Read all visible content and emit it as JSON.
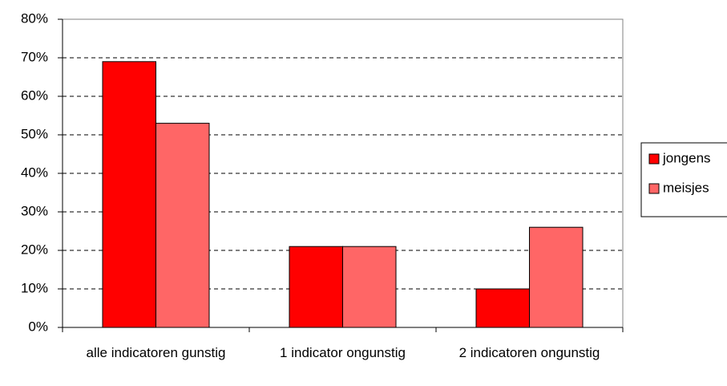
{
  "chart_data": {
    "type": "bar",
    "categories": [
      "alle indicatoren gunstig",
      "1 indicator ongunstig",
      "2 indicatoren ongunstig"
    ],
    "series": [
      {
        "name": "jongens",
        "color": "#ff0000",
        "values": [
          69,
          21,
          10
        ]
      },
      {
        "name": "meisjes",
        "color": "#ff6666",
        "values": [
          53,
          21,
          26
        ]
      }
    ],
    "ylim": [
      0,
      80
    ],
    "yticks": [
      {
        "value": 0,
        "label": "0%"
      },
      {
        "value": 10,
        "label": "10%"
      },
      {
        "value": 20,
        "label": "20%"
      },
      {
        "value": 30,
        "label": "30%"
      },
      {
        "value": 40,
        "label": "40%"
      },
      {
        "value": 50,
        "label": "50%"
      },
      {
        "value": 60,
        "label": "60%"
      },
      {
        "value": 70,
        "label": "70%"
      },
      {
        "value": 80,
        "label": "80%"
      }
    ],
    "grid": true,
    "legend": "right"
  }
}
